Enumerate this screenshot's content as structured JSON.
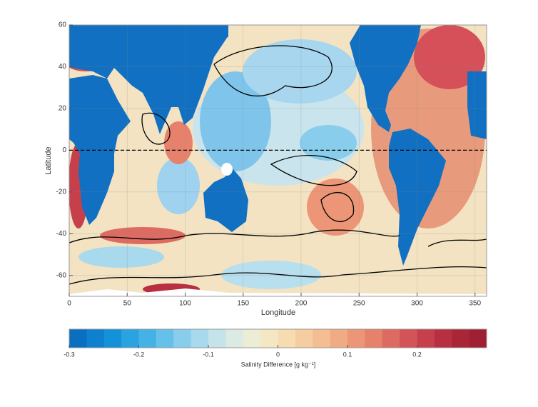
{
  "chart_data": {
    "type": "map",
    "xlabel": "Longitude",
    "ylabel": "Latitude",
    "xlim": [
      0,
      360
    ],
    "ylim": [
      -70,
      60
    ],
    "xticks": [
      0,
      50,
      100,
      150,
      200,
      250,
      300,
      350
    ],
    "yticks": [
      60,
      40,
      20,
      0,
      -20,
      -40,
      -60
    ],
    "hline": 0,
    "grid": true,
    "colorbar": {
      "label": "Salinity Difference [g kg⁻¹]",
      "lim": [
        -0.3,
        0.3
      ],
      "ticks": [
        -0.3,
        -0.2,
        -0.1,
        0,
        0.1,
        0.2
      ],
      "colormap": [
        "#0a6fc1",
        "#0d80cf",
        "#1392d9",
        "#2aa3e0",
        "#45b2e6",
        "#66c1ea",
        "#88cdec",
        "#a8d9ec",
        "#c5e3ea",
        "#dbeae2",
        "#ebedd5",
        "#f3e8c3",
        "#f6dcb0",
        "#f6cda0",
        "#f4bd92",
        "#f1ab84",
        "#ec9677",
        "#e6816c",
        "#dd6b62",
        "#d35458",
        "#c6404c",
        "#b82f41",
        "#a92637",
        "#9f2033"
      ]
    }
  }
}
